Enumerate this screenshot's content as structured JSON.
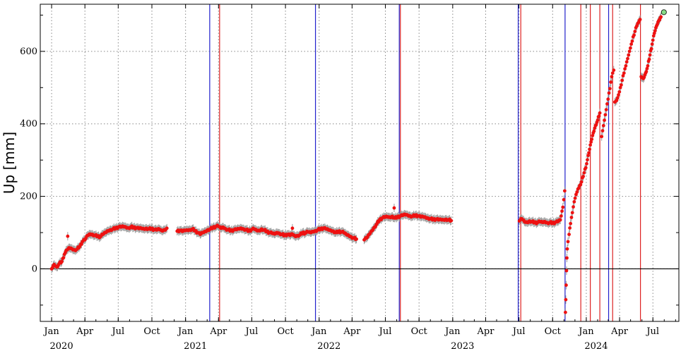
{
  "chart_data": {
    "type": "scatter",
    "title": "",
    "xlabel": "",
    "ylabel": "Up [mm]",
    "x_range": [
      "2019-12-01",
      "2024-09-10"
    ],
    "ylim": [
      -145,
      730
    ],
    "y_ticks": [
      0,
      200,
      400,
      600
    ],
    "y_tick_labels": [
      "0",
      "200",
      "400",
      "600"
    ],
    "x_ticks": [
      {
        "date": "2020-01-01",
        "label": "Jan"
      },
      {
        "date": "2020-04-01",
        "label": "Apr"
      },
      {
        "date": "2020-07-01",
        "label": "Jul"
      },
      {
        "date": "2020-10-01",
        "label": "Oct"
      },
      {
        "date": "2021-01-01",
        "label": "Jan"
      },
      {
        "date": "2021-04-01",
        "label": "Apr"
      },
      {
        "date": "2021-07-01",
        "label": "Jul"
      },
      {
        "date": "2021-10-01",
        "label": "Oct"
      },
      {
        "date": "2022-01-01",
        "label": "Jan"
      },
      {
        "date": "2022-04-01",
        "label": "Apr"
      },
      {
        "date": "2022-07-01",
        "label": "Jul"
      },
      {
        "date": "2022-10-01",
        "label": "Oct"
      },
      {
        "date": "2023-01-01",
        "label": "Jan"
      },
      {
        "date": "2023-04-01",
        "label": "Apr"
      },
      {
        "date": "2023-07-01",
        "label": "Jul"
      },
      {
        "date": "2023-10-01",
        "label": "Oct"
      },
      {
        "date": "2024-01-01",
        "label": "Jan"
      },
      {
        "date": "2024-04-01",
        "label": "Apr"
      },
      {
        "date": "2024-07-01",
        "label": "Jul"
      }
    ],
    "year_labels": [
      {
        "date": "2020-01-01",
        "label": "2020"
      },
      {
        "date": "2021-01-01",
        "label": "2021"
      },
      {
        "date": "2022-01-01",
        "label": "2022"
      },
      {
        "date": "2023-01-01",
        "label": "2023"
      },
      {
        "date": "2024-01-01",
        "label": "2024"
      }
    ],
    "grid": true,
    "zero_line": 0,
    "colors": {
      "points": "#ee1111",
      "error_bars": "#999999",
      "blue_lines": "#2222cc",
      "red_lines": "#dd2222",
      "last_point": "#88dd88"
    },
    "blue_event_lines": [
      "2021-03-08",
      "2021-12-22",
      "2022-08-08",
      "2023-06-29",
      "2023-11-04",
      "2024-03-02"
    ],
    "red_event_lines": [
      "2021-04-04",
      "2022-08-11",
      "2023-07-06",
      "2023-12-17",
      "2024-01-12",
      "2024-02-07",
      "2024-03-13",
      "2024-05-28"
    ],
    "series": [
      {
        "points": [
          [
            "2020-01-01",
            0
          ],
          [
            "2020-01-08",
            12
          ],
          [
            "2020-01-15",
            5
          ],
          [
            "2020-01-22",
            15
          ],
          [
            "2020-01-29",
            20
          ],
          [
            "2020-02-05",
            40
          ],
          [
            "2020-02-12",
            52
          ],
          [
            "2020-02-19",
            58
          ],
          [
            "2020-02-26",
            55
          ],
          [
            "2020-03-04",
            52
          ],
          [
            "2020-03-11",
            55
          ],
          [
            "2020-03-18",
            62
          ],
          [
            "2020-03-25",
            75
          ],
          [
            "2020-04-01",
            80
          ],
          [
            "2020-04-08",
            92
          ],
          [
            "2020-04-15",
            96
          ],
          [
            "2020-04-22",
            95
          ],
          [
            "2020-04-29",
            92
          ],
          [
            "2020-05-06",
            90
          ],
          [
            "2020-05-13",
            88
          ],
          [
            "2020-05-20",
            95
          ],
          [
            "2020-05-27",
            100
          ],
          [
            "2020-06-03",
            105
          ],
          [
            "2020-06-10",
            108
          ],
          [
            "2020-06-17",
            110
          ],
          [
            "2020-06-24",
            112
          ],
          [
            "2020-07-01",
            115
          ],
          [
            "2020-07-08",
            115
          ],
          [
            "2020-07-15",
            117
          ],
          [
            "2020-07-22",
            115
          ],
          [
            "2020-07-29",
            113
          ],
          [
            "2020-08-05",
            116
          ],
          [
            "2020-08-12",
            114
          ],
          [
            "2020-08-19",
            113
          ],
          [
            "2020-08-26",
            111
          ],
          [
            "2020-09-02",
            112
          ],
          [
            "2020-09-09",
            110
          ],
          [
            "2020-09-16",
            112
          ],
          [
            "2020-09-23",
            110
          ],
          [
            "2020-09-30",
            111
          ],
          [
            "2020-10-07",
            108
          ],
          [
            "2020-10-14",
            107
          ],
          [
            "2020-10-21",
            110
          ],
          [
            "2020-10-28",
            105
          ],
          [
            "2020-11-04",
            108
          ],
          [
            "2020-11-11",
            112
          ],
          [
            "2020-12-09",
            104
          ],
          [
            "2020-12-16",
            106
          ],
          [
            "2020-12-23",
            103
          ],
          [
            "2020-12-30",
            106
          ],
          [
            "2021-01-06",
            107
          ],
          [
            "2021-01-13",
            108
          ],
          [
            "2021-01-20",
            110
          ],
          [
            "2021-01-27",
            105
          ],
          [
            "2021-02-03",
            100
          ],
          [
            "2021-02-10",
            95
          ],
          [
            "2021-02-17",
            100
          ],
          [
            "2021-02-24",
            103
          ],
          [
            "2021-03-03",
            108
          ],
          [
            "2021-03-10",
            110
          ],
          [
            "2021-03-17",
            114
          ],
          [
            "2021-03-24",
            116
          ],
          [
            "2021-03-31",
            118
          ],
          [
            "2021-04-07",
            112
          ],
          [
            "2021-04-14",
            115
          ],
          [
            "2021-04-21",
            110
          ],
          [
            "2021-04-28",
            108
          ],
          [
            "2021-05-05",
            105
          ],
          [
            "2021-05-12",
            107
          ],
          [
            "2021-05-19",
            108
          ],
          [
            "2021-05-26",
            110
          ],
          [
            "2021-06-02",
            112
          ],
          [
            "2021-06-09",
            110
          ],
          [
            "2021-06-16",
            108
          ],
          [
            "2021-06-23",
            104
          ],
          [
            "2021-06-30",
            108
          ],
          [
            "2021-07-07",
            110
          ],
          [
            "2021-07-14",
            106
          ],
          [
            "2021-07-21",
            105
          ],
          [
            "2021-07-28",
            110
          ],
          [
            "2021-08-04",
            107
          ],
          [
            "2021-08-11",
            103
          ],
          [
            "2021-08-18",
            100
          ],
          [
            "2021-08-25",
            98
          ],
          [
            "2021-09-01",
            96
          ],
          [
            "2021-09-08",
            100
          ],
          [
            "2021-09-15",
            98
          ],
          [
            "2021-09-22",
            95
          ],
          [
            "2021-09-29",
            92
          ],
          [
            "2021-10-06",
            95
          ],
          [
            "2021-10-13",
            92
          ],
          [
            "2021-10-20",
            96
          ],
          [
            "2021-10-27",
            90
          ],
          [
            "2021-11-03",
            92
          ],
          [
            "2021-11-10",
            94
          ],
          [
            "2021-11-17",
            100
          ],
          [
            "2021-11-24",
            98
          ],
          [
            "2021-12-01",
            102
          ],
          [
            "2021-12-08",
            100
          ],
          [
            "2021-12-15",
            103
          ],
          [
            "2021-12-22",
            105
          ],
          [
            "2021-12-29",
            108
          ],
          [
            "2022-01-05",
            110
          ],
          [
            "2022-01-12",
            112
          ],
          [
            "2022-01-19",
            110
          ],
          [
            "2022-01-26",
            108
          ],
          [
            "2022-02-02",
            106
          ],
          [
            "2022-02-09",
            104
          ],
          [
            "2022-02-16",
            100
          ],
          [
            "2022-02-23",
            103
          ],
          [
            "2022-03-02",
            102
          ],
          [
            "2022-03-09",
            100
          ],
          [
            "2022-03-16",
            95
          ],
          [
            "2022-03-23",
            92
          ],
          [
            "2022-03-30",
            88
          ],
          [
            "2022-04-06",
            85
          ],
          [
            "2022-04-13",
            82
          ],
          [
            "2022-05-04",
            80
          ],
          [
            "2022-05-11",
            85
          ],
          [
            "2022-05-18",
            95
          ],
          [
            "2022-05-25",
            105
          ],
          [
            "2022-06-01",
            115
          ],
          [
            "2022-06-08",
            125
          ],
          [
            "2022-06-15",
            135
          ],
          [
            "2022-06-22",
            140
          ],
          [
            "2022-06-29",
            142
          ],
          [
            "2022-07-06",
            144
          ],
          [
            "2022-07-13",
            142
          ],
          [
            "2022-07-20",
            145
          ],
          [
            "2022-07-27",
            140
          ],
          [
            "2022-08-03",
            143
          ],
          [
            "2022-08-10",
            145
          ],
          [
            "2022-08-17",
            147
          ],
          [
            "2022-08-24",
            150
          ],
          [
            "2022-08-31",
            148
          ],
          [
            "2022-09-07",
            146
          ],
          [
            "2022-09-14",
            145
          ],
          [
            "2022-09-21",
            148
          ],
          [
            "2022-09-28",
            146
          ],
          [
            "2022-10-05",
            143
          ],
          [
            "2022-10-12",
            144
          ],
          [
            "2022-10-19",
            142
          ],
          [
            "2022-10-26",
            140
          ],
          [
            "2022-11-02",
            138
          ],
          [
            "2022-11-09",
            136
          ],
          [
            "2022-11-16",
            137
          ],
          [
            "2022-11-23",
            135
          ],
          [
            "2022-11-30",
            136
          ],
          [
            "2022-12-07",
            135
          ],
          [
            "2022-12-14",
            137
          ],
          [
            "2022-12-21",
            135
          ],
          [
            "2022-12-28",
            133
          ],
          [
            "2023-07-02",
            132
          ],
          [
            "2023-07-09",
            138
          ],
          [
            "2023-07-16",
            130
          ],
          [
            "2023-07-23",
            128
          ],
          [
            "2023-07-30",
            132
          ],
          [
            "2023-08-06",
            130
          ],
          [
            "2023-08-13",
            128
          ],
          [
            "2023-08-20",
            127
          ],
          [
            "2023-08-27",
            130
          ],
          [
            "2023-09-03",
            128
          ],
          [
            "2023-09-10",
            130
          ],
          [
            "2023-09-17",
            127
          ],
          [
            "2023-09-24",
            128
          ],
          [
            "2023-10-01",
            126
          ],
          [
            "2023-10-08",
            128
          ],
          [
            "2023-10-15",
            130
          ],
          [
            "2023-10-22",
            135
          ],
          [
            "2023-10-29",
            170
          ],
          [
            "2023-11-03",
            215
          ],
          [
            "2023-11-05",
            -120
          ],
          [
            "2023-11-06",
            -85
          ],
          [
            "2023-11-07",
            -45
          ],
          [
            "2023-11-08",
            -5
          ],
          [
            "2023-11-09",
            30
          ],
          [
            "2023-11-10",
            55
          ],
          [
            "2023-11-12",
            75
          ],
          [
            "2023-11-15",
            95
          ],
          [
            "2023-11-19",
            125
          ],
          [
            "2023-11-24",
            155
          ],
          [
            "2023-11-29",
            185
          ],
          [
            "2023-12-04",
            205
          ],
          [
            "2023-12-09",
            220
          ],
          [
            "2023-12-14",
            230
          ],
          [
            "2023-12-19",
            240
          ],
          [
            "2023-12-26",
            265
          ],
          [
            "2024-01-02",
            290
          ],
          [
            "2024-01-08",
            320
          ],
          [
            "2024-01-14",
            350
          ],
          [
            "2024-01-20",
            375
          ],
          [
            "2024-01-26",
            395
          ],
          [
            "2024-02-01",
            410
          ],
          [
            "2024-02-07",
            430
          ],
          [
            "2024-02-12",
            365
          ],
          [
            "2024-02-17",
            395
          ],
          [
            "2024-02-22",
            425
          ],
          [
            "2024-02-27",
            455
          ],
          [
            "2024-03-03",
            485
          ],
          [
            "2024-03-08",
            515
          ],
          [
            "2024-03-13",
            540
          ],
          [
            "2024-03-16",
            548
          ],
          [
            "2024-03-19",
            460
          ],
          [
            "2024-03-24",
            465
          ],
          [
            "2024-03-29",
            480
          ],
          [
            "2024-04-03",
            500
          ],
          [
            "2024-04-08",
            520
          ],
          [
            "2024-04-13",
            540
          ],
          [
            "2024-04-18",
            560
          ],
          [
            "2024-04-23",
            580
          ],
          [
            "2024-04-28",
            600
          ],
          [
            "2024-05-03",
            620
          ],
          [
            "2024-05-08",
            640
          ],
          [
            "2024-05-13",
            655
          ],
          [
            "2024-05-18",
            670
          ],
          [
            "2024-05-23",
            680
          ],
          [
            "2024-05-27",
            688
          ],
          [
            "2024-05-30",
            530
          ],
          [
            "2024-06-05",
            525
          ],
          [
            "2024-06-11",
            540
          ],
          [
            "2024-06-17",
            560
          ],
          [
            "2024-06-23",
            590
          ],
          [
            "2024-06-29",
            620
          ],
          [
            "2024-07-05",
            650
          ],
          [
            "2024-07-11",
            670
          ],
          [
            "2024-07-17",
            685
          ],
          [
            "2024-07-23",
            695
          ]
        ],
        "outliers": [
          [
            "2020-02-14",
            90
          ],
          [
            "2022-07-25",
            168
          ],
          [
            "2021-10-20",
            112
          ]
        ],
        "last_point": [
          "2024-07-31",
          708
        ]
      }
    ]
  }
}
